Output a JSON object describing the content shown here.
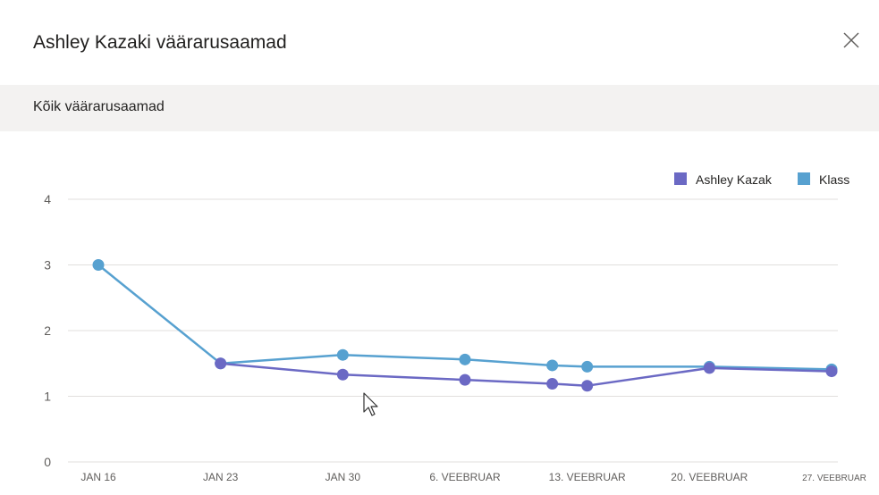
{
  "dialog": {
    "title": "Ashley Kazaki väärarusaamad",
    "section_title": "Kõik väärarusaamad"
  },
  "colors": {
    "student": "#6b69c4",
    "class": "#57a1d0",
    "grid": "#e1dfdd",
    "axis_text": "#605e5c"
  },
  "chart_data": {
    "type": "line",
    "categories": [
      "JAN 16",
      "JAN 23",
      "JAN 30",
      "6. VEEBRUAR",
      "13. VEEBRUAR",
      "20. VEEBRUAR",
      "27. VEEBRUAR"
    ],
    "x_positions": [
      "2020-01-16",
      "2020-01-23",
      "2020-01-30",
      "2020-02-06",
      "2020-02-11",
      "2020-02-13",
      "2020-02-20",
      "2020-02-27"
    ],
    "ylim": [
      0,
      4
    ],
    "yticks": [
      "0",
      "1",
      "2",
      "3",
      "4"
    ],
    "grid": true,
    "legend_position": "top-right",
    "series": [
      {
        "name": "Ashley Kazak",
        "color": "#6b69c4",
        "points": [
          {
            "x": "2020-01-23",
            "y": 1.5
          },
          {
            "x": "2020-01-30",
            "y": 1.33
          },
          {
            "x": "2020-02-06",
            "y": 1.25
          },
          {
            "x": "2020-02-11",
            "y": 1.19
          },
          {
            "x": "2020-02-13",
            "y": 1.16
          },
          {
            "x": "2020-02-20",
            "y": 1.43
          },
          {
            "x": "2020-02-27",
            "y": 1.38
          }
        ]
      },
      {
        "name": "Klass",
        "color": "#57a1d0",
        "points": [
          {
            "x": "2020-01-16",
            "y": 3.0
          },
          {
            "x": "2020-01-23",
            "y": 1.5
          },
          {
            "x": "2020-01-30",
            "y": 1.63
          },
          {
            "x": "2020-02-06",
            "y": 1.56
          },
          {
            "x": "2020-02-11",
            "y": 1.47
          },
          {
            "x": "2020-02-13",
            "y": 1.45
          },
          {
            "x": "2020-02-20",
            "y": 1.45
          },
          {
            "x": "2020-02-27",
            "y": 1.41
          }
        ]
      }
    ]
  }
}
